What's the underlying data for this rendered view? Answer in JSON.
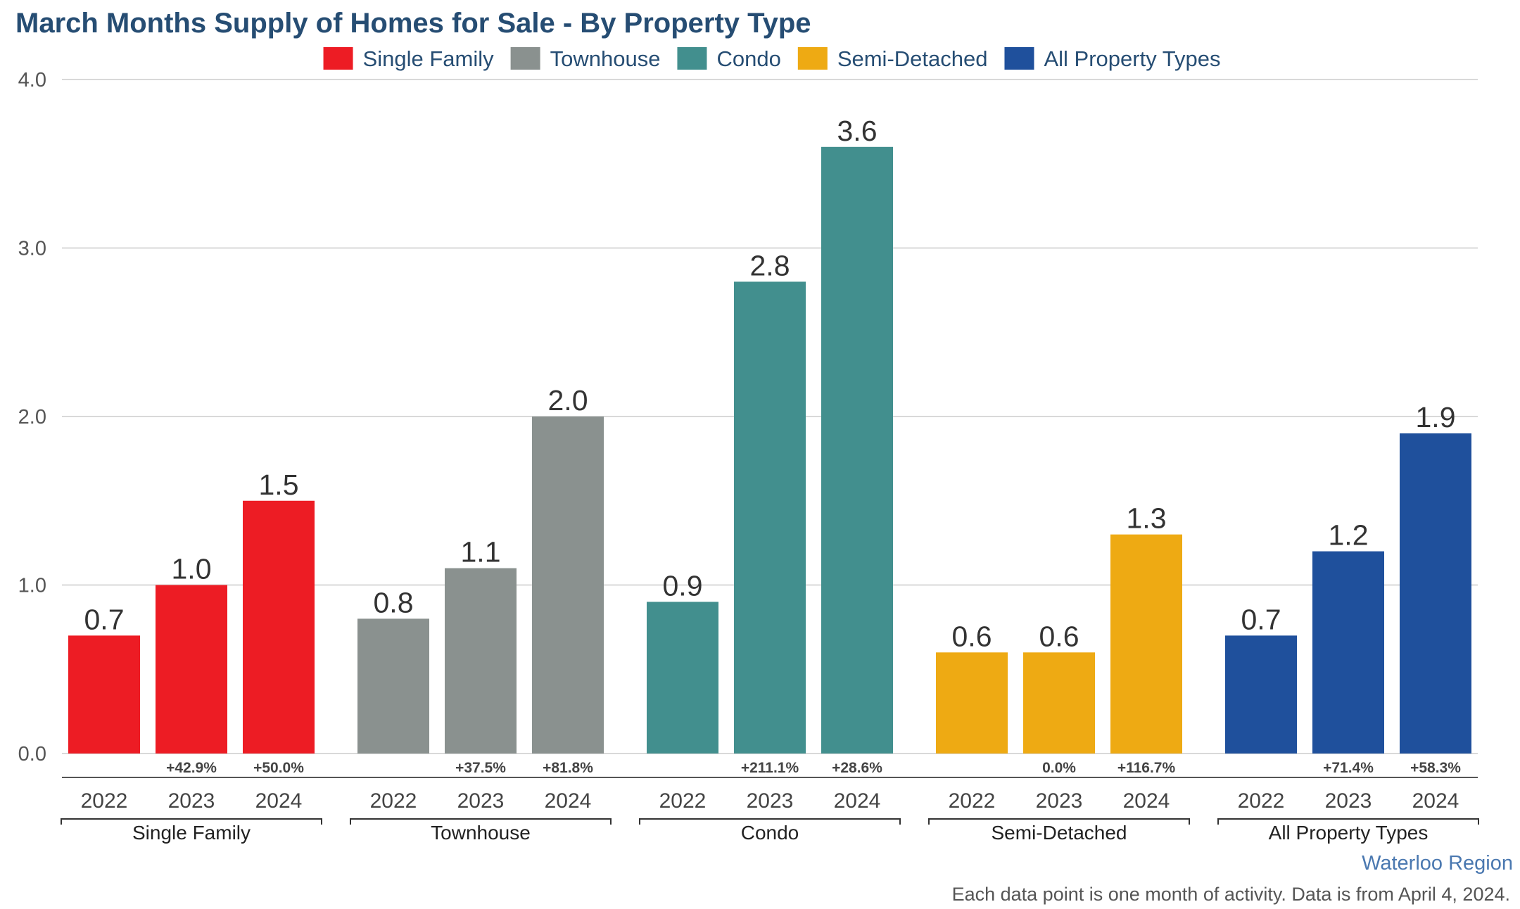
{
  "title": "March Months Supply of Homes for Sale - By Property Type",
  "region": "Waterloo Region",
  "note": "Each data point is one month of activity. Data is from April 4, 2024.",
  "chart_data": {
    "type": "bar",
    "title": "March Months Supply of Homes for Sale - By Property Type",
    "xlabel": "",
    "ylabel": "",
    "ylim": [
      0,
      4
    ],
    "yticks": [
      "0.0",
      "1.0",
      "2.0",
      "3.0",
      "4.0"
    ],
    "grid": true,
    "legend_position": "top",
    "years": [
      "2022",
      "2023",
      "2024"
    ],
    "groups": [
      {
        "name": "Single Family",
        "color": "#ed1c24",
        "values": [
          0.7,
          1.0,
          1.5
        ],
        "value_labels": [
          "0.7",
          "1.0",
          "1.5"
        ],
        "changes": [
          "",
          "+42.9%",
          "+50.0%"
        ]
      },
      {
        "name": "Townhouse",
        "color": "#8a918f",
        "values": [
          0.8,
          1.1,
          2.0
        ],
        "value_labels": [
          "0.8",
          "1.1",
          "2.0"
        ],
        "changes": [
          "",
          "+37.5%",
          "+81.8%"
        ]
      },
      {
        "name": "Condo",
        "color": "#428f8e",
        "values": [
          0.9,
          2.8,
          3.6
        ],
        "value_labels": [
          "0.9",
          "2.8",
          "3.6"
        ],
        "changes": [
          "",
          "+211.1%",
          "+28.6%"
        ]
      },
      {
        "name": "Semi-Detached",
        "color": "#eeaa13",
        "values": [
          0.6,
          0.6,
          1.3
        ],
        "value_labels": [
          "0.6",
          "0.6",
          "1.3"
        ],
        "changes": [
          "",
          "0.0%",
          "+116.7%"
        ]
      },
      {
        "name": "All Property Types",
        "color": "#1f509c",
        "values": [
          0.7,
          1.2,
          1.9
        ],
        "value_labels": [
          "0.7",
          "1.2",
          "1.9"
        ],
        "changes": [
          "",
          "+71.4%",
          "+58.3%"
        ]
      }
    ]
  }
}
